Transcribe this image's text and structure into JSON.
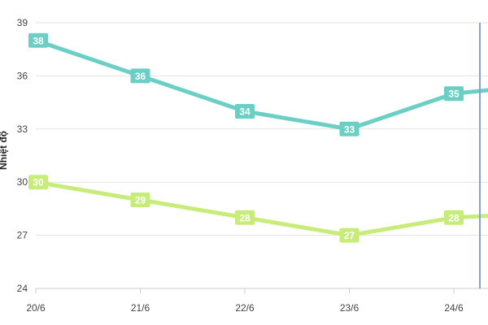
{
  "chart_data": {
    "type": "line",
    "ylabel": "Nhiệt độ",
    "categories": [
      "20/6",
      "21/6",
      "22/6",
      "23/6",
      "24/6"
    ],
    "yticks": [
      24,
      27,
      30,
      33,
      36,
      39
    ],
    "ylim": [
      24,
      39
    ],
    "grid": true,
    "series": [
      {
        "values": [
          38,
          36,
          34,
          33,
          35
        ],
        "color": "#6ccfc6"
      },
      {
        "values": [
          30,
          29,
          28,
          27,
          28
        ],
        "color": "#c8ec7a"
      }
    ],
    "hover_marker_color": "#8aa0d4"
  }
}
